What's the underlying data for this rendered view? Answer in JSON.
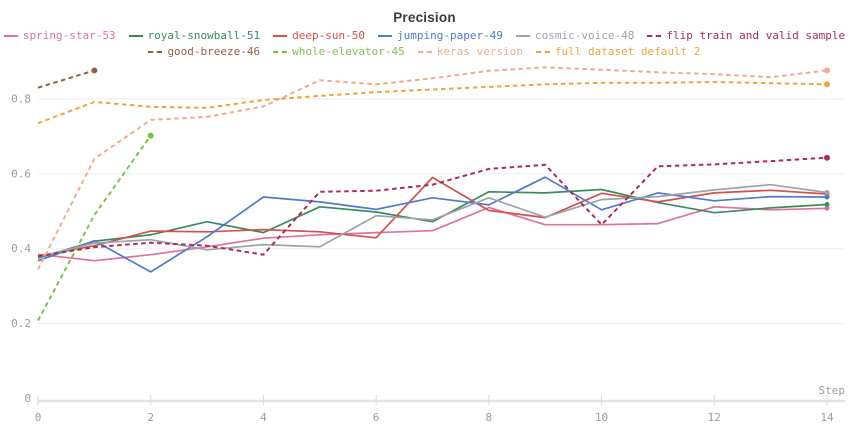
{
  "title": "Precision",
  "colors": {
    "background": "#ffffff",
    "title_text": "#3b3b3b",
    "grid_line": "#ededf0",
    "axis_line": "#e3e3e8",
    "tick_mark": "#d9d9de",
    "tick_label": "#9b9ba1"
  },
  "chart_data": {
    "type": "line",
    "title": "Precision",
    "xlabel": "Step",
    "ylabel": "",
    "x_range": [
      0,
      14
    ],
    "y_range": [
      0,
      0.95
    ],
    "x_ticks": [
      0,
      2,
      4,
      6,
      8,
      10,
      12,
      14
    ],
    "y_ticks": [
      0,
      0.2,
      0.4,
      0.6,
      0.8
    ],
    "grid": "horizontal",
    "legend_position": "top",
    "legend_rows": [
      [
        0,
        1,
        2,
        3,
        4,
        5
      ],
      [
        6,
        7,
        8,
        9
      ]
    ],
    "x": [
      0,
      1,
      2,
      3,
      4,
      5,
      6,
      7,
      8,
      9,
      10,
      11,
      12,
      13,
      14
    ],
    "series": [
      {
        "name": "spring-star-53",
        "color": "#e0719e",
        "style": "solid",
        "end_dot": true,
        "values": [
          0.385,
          0.368,
          0.384,
          0.405,
          0.428,
          0.437,
          0.443,
          0.448,
          0.51,
          0.464,
          0.464,
          0.467,
          0.512,
          0.504,
          0.508
        ]
      },
      {
        "name": "royal-snowball-51",
        "color": "#3a8b5c",
        "style": "solid",
        "end_dot": true,
        "values": [
          0.375,
          0.42,
          0.437,
          0.472,
          0.443,
          0.512,
          0.498,
          0.472,
          0.552,
          0.549,
          0.558,
          0.523,
          0.496,
          0.509,
          0.518
        ]
      },
      {
        "name": "deep-sun-50",
        "color": "#d6504a",
        "style": "solid",
        "end_dot": true,
        "values": [
          0.38,
          0.408,
          0.447,
          0.445,
          0.451,
          0.445,
          0.429,
          0.59,
          0.502,
          0.483,
          0.548,
          0.525,
          0.549,
          0.556,
          0.546
        ]
      },
      {
        "name": "jumping-paper-49",
        "color": "#4e7ad1",
        "style": "solid",
        "end_dot": true,
        "values": [
          0.368,
          0.421,
          0.338,
          0.432,
          0.538,
          0.525,
          0.505,
          0.536,
          0.517,
          0.591,
          0.504,
          0.549,
          0.528,
          0.539,
          0.538
        ]
      },
      {
        "name": "cosmic-voice-48",
        "color": "#9da3a9",
        "style": "solid",
        "end_dot": true,
        "values": [
          0.378,
          0.415,
          0.424,
          0.397,
          0.411,
          0.405,
          0.488,
          0.477,
          0.536,
          0.484,
          0.531,
          0.539,
          0.557,
          0.571,
          0.55
        ]
      },
      {
        "name": "flip train and valid sample",
        "color": "#ab2d56",
        "style": "dashed",
        "end_dot": true,
        "values": [
          0.38,
          0.404,
          0.416,
          0.408,
          0.384,
          0.552,
          0.555,
          0.571,
          0.613,
          0.624,
          0.464,
          0.62,
          0.625,
          0.634,
          0.643
        ]
      },
      {
        "name": "good-breeze-46",
        "color": "#9d5b45",
        "style": "dashed",
        "end_dot": true,
        "values": [
          0.83,
          0.876
        ]
      },
      {
        "name": "whole-elevator-45",
        "color": "#7fbf4d",
        "style": "dashed",
        "end_dot": true,
        "values": [
          0.208,
          0.49,
          0.702
        ]
      },
      {
        "name": "keras version",
        "color": "#f2ab90",
        "style": "dashed",
        "end_dot": true,
        "values": [
          0.345,
          0.64,
          0.744,
          0.752,
          0.78,
          0.85,
          0.839,
          0.855,
          0.875,
          0.884,
          0.878,
          0.871,
          0.866,
          0.858,
          0.876
        ]
      },
      {
        "name": "full dataset default 2",
        "color": "#eaa73c",
        "style": "dashed",
        "end_dot": true,
        "values": [
          0.735,
          0.792,
          0.779,
          0.776,
          0.797,
          0.808,
          0.818,
          0.825,
          0.832,
          0.839,
          0.843,
          0.843,
          0.845,
          0.842,
          0.839
        ]
      }
    ]
  }
}
